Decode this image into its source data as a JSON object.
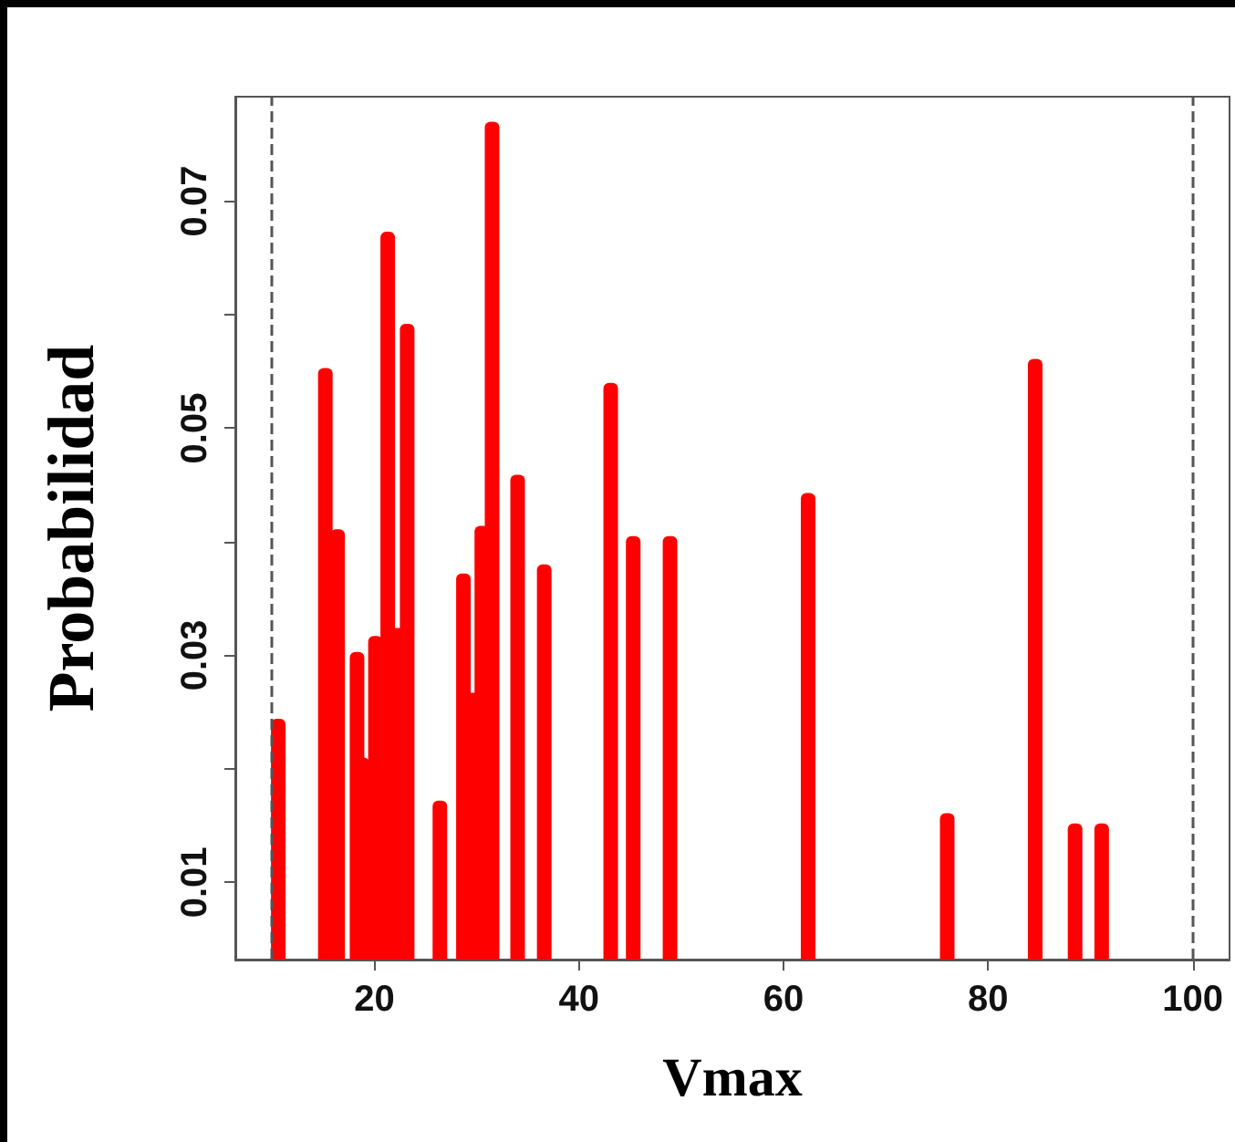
{
  "chart_data": {
    "type": "bar",
    "xlabel": "Vmax",
    "ylabel": "Probabilidad",
    "x": [
      10.6,
      15.2,
      16.4,
      18.3,
      18.8,
      20.1,
      21.3,
      22.3,
      23.2,
      26.4,
      28.7,
      29.7,
      30.5,
      31.5,
      34.0,
      36.6,
      43.1,
      45.3,
      48.9,
      62.4,
      76.0,
      84.6,
      88.5,
      91.1
    ],
    "values": [
      0.0244,
      0.0553,
      0.0411,
      0.0303,
      0.021,
      0.0317,
      0.0673,
      0.0324,
      0.0592,
      0.0172,
      0.0372,
      0.0267,
      0.0414,
      0.077,
      0.0459,
      0.038,
      0.054,
      0.0405,
      0.0405,
      0.0443,
      0.0161,
      0.0561,
      0.0152,
      0.0152
    ],
    "color": "#ff0000",
    "xlim": [
      6.4,
      103.6
    ],
    "xticks": [
      20,
      40,
      60,
      80,
      100
    ],
    "ylim": [
      0.0032,
      0.0792
    ],
    "yticks": [
      0.01,
      {
        "value": 0.02,
        "label": null
      },
      0.03,
      {
        "value": 0.04,
        "label": null
      },
      0.05,
      {
        "value": 0.06,
        "label": null
      },
      0.07
    ],
    "ref_lines": [
      {
        "axis": "x",
        "value": 10,
        "line_style": "dashed",
        "color": "#555555"
      },
      {
        "axis": "x",
        "value": 100,
        "line_style": "dashed",
        "color": "#555555"
      }
    ],
    "grid": false
  }
}
